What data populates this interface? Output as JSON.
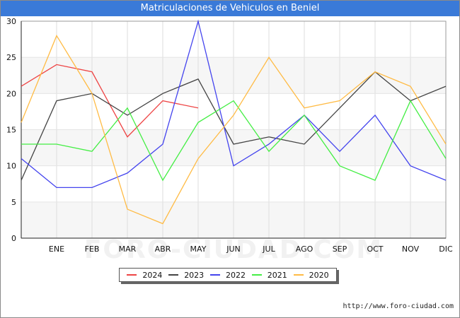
{
  "header": {
    "title": "Matriculaciones de Vehiculos en Beniel"
  },
  "footer": {
    "url": "http://www.foro-ciudad.com"
  },
  "chart_data": {
    "type": "line",
    "title": "Matriculaciones de Vehiculos en Beniel",
    "xlabel": "",
    "ylabel": "",
    "categories": [
      "",
      "ENE",
      "FEB",
      "MAR",
      "ABR",
      "MAY",
      "JUN",
      "JUL",
      "AGO",
      "SEP",
      "OCT",
      "NOV",
      "DIC"
    ],
    "ylim": [
      0,
      30
    ],
    "yticks": [
      "0",
      "5",
      "10",
      "15",
      "20",
      "25",
      "30"
    ],
    "grid": "horizontal bands",
    "legend_position": "bottom",
    "watermark": "FORO-CIUDAD.COM",
    "series": [
      {
        "name": "2024",
        "color": "#ee4444",
        "values": [
          21,
          24,
          23,
          14,
          19,
          18,
          null,
          null,
          null,
          null,
          null,
          null,
          null
        ]
      },
      {
        "name": "2023",
        "color": "#444444",
        "values": [
          8,
          19,
          20,
          17,
          20,
          22,
          13,
          14,
          13,
          18,
          23,
          19,
          21
        ]
      },
      {
        "name": "2022",
        "color": "#4444ee",
        "values": [
          11,
          7,
          7,
          9,
          13,
          30,
          10,
          13,
          17,
          12,
          17,
          10,
          8
        ]
      },
      {
        "name": "2021",
        "color": "#44ee44",
        "values": [
          13,
          13,
          12,
          18,
          8,
          16,
          19,
          12,
          17,
          10,
          8,
          19,
          11
        ]
      },
      {
        "name": "2020",
        "color": "#ffbb44",
        "values": [
          16,
          28,
          20,
          4,
          2,
          11,
          17,
          25,
          18,
          19,
          23,
          21,
          13
        ]
      }
    ]
  }
}
